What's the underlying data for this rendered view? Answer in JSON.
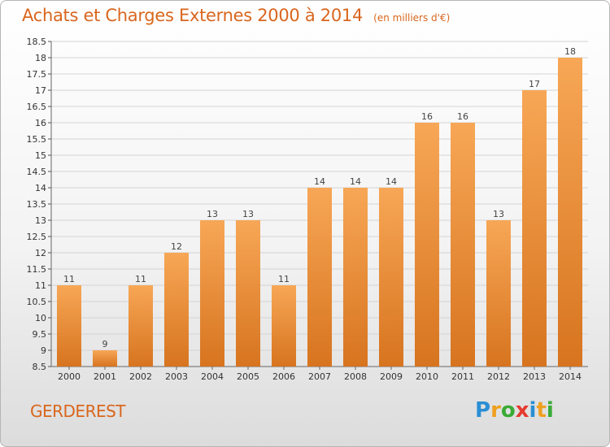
{
  "header": {
    "title": "Achats et Charges Externes 2000 à 2014",
    "subtitle": "(en milliers d'€)"
  },
  "footer": {
    "location": "GERDEREST",
    "logo": {
      "text": "Proxiti",
      "letters": [
        {
          "char": "P",
          "color": "#2a8fd4"
        },
        {
          "char": "r",
          "color": "#f0a020"
        },
        {
          "char": "o",
          "color": "#3aaa35"
        },
        {
          "char": "x",
          "color": "#e63a2e"
        },
        {
          "char": "i",
          "color": "#2a8fd4"
        },
        {
          "char": "t",
          "color": "#f0a020"
        },
        {
          "char": "i",
          "color": "#3aaa35"
        }
      ]
    }
  },
  "colors": {
    "bar_top": "#f7a756",
    "bar_bottom": "#d7741f",
    "accent": "#d9661e",
    "grid": "#d4d4d4"
  },
  "chart_data": {
    "type": "bar",
    "title": "Achats et Charges Externes 2000 à 2014",
    "subtitle": "(en milliers d'€)",
    "xlabel": "",
    "ylabel": "",
    "categories": [
      "2000",
      "2001",
      "2002",
      "2003",
      "2004",
      "2005",
      "2006",
      "2007",
      "2008",
      "2009",
      "2010",
      "2011",
      "2012",
      "2013",
      "2014"
    ],
    "values": [
      11,
      9,
      11,
      12,
      13,
      13,
      11,
      14,
      14,
      14,
      16,
      16,
      13,
      17,
      18
    ],
    "data_labels": [
      "11",
      "9",
      "11",
      "12",
      "13",
      "13",
      "11",
      "14",
      "14",
      "14",
      "16",
      "16",
      "13",
      "17",
      "18"
    ],
    "ylim": [
      8.5,
      18.5
    ],
    "yticks": [
      8.5,
      9,
      9.5,
      10,
      10.5,
      11,
      11.5,
      12,
      12.5,
      13,
      13.5,
      14,
      14.5,
      15,
      15.5,
      16,
      16.5,
      17,
      17.5,
      18,
      18.5
    ],
    "ytick_labels": [
      "8.5",
      "9",
      "9.5",
      "10",
      "10.5",
      "11",
      "11.5",
      "12",
      "12.5",
      "13",
      "13.5",
      "14",
      "14.5",
      "15",
      "15.5",
      "16",
      "16.5",
      "17",
      "17.5",
      "18",
      "18.5"
    ],
    "grid": true,
    "legend": "none"
  }
}
